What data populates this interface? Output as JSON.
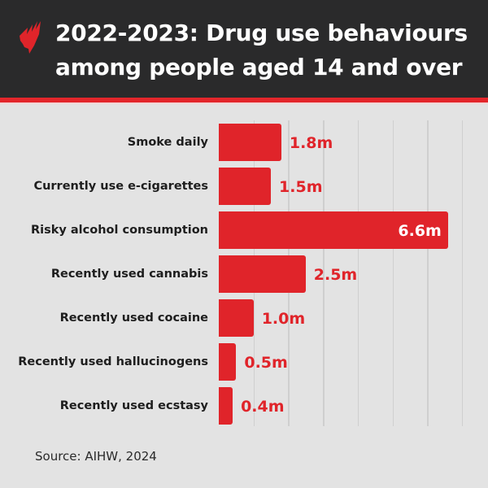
{
  "header": {
    "title_line1": "2022-2023: Drug use behaviours",
    "title_line2": "among people aged 14 and over",
    "logo": "sbs-logo-icon"
  },
  "colors": {
    "header_bg": "#2a2a2b",
    "accent": "#e0242a",
    "background": "#e3e3e3",
    "gridline": "#cfcfcf"
  },
  "footer": {
    "source": "Source: AIHW, 2024"
  },
  "chart_data": {
    "type": "bar",
    "orientation": "horizontal",
    "title": "2022-2023: Drug use behaviours among people aged 14 and over",
    "xlabel": "",
    "ylabel": "",
    "unit": "million people",
    "categories": [
      "Smoke daily",
      "Currently use e-cigarettes",
      "Risky alcohol consumption",
      "Recently used cannabis",
      "Recently used cocaine",
      "Recently used hallucinogens",
      "Recently used ecstasy"
    ],
    "values": [
      1.8,
      1.5,
      6.6,
      2.5,
      1.0,
      0.5,
      0.4
    ],
    "value_labels": [
      "1.8m",
      "1.5m",
      "6.6m",
      "2.5m",
      "1.0m",
      "0.5m",
      "0.4m"
    ],
    "xlim": [
      0,
      7
    ],
    "grid": true,
    "gridlines_at": [
      1,
      2,
      3,
      4,
      5,
      6,
      7
    ],
    "legend": "none",
    "source": "Source: AIHW, 2024"
  }
}
